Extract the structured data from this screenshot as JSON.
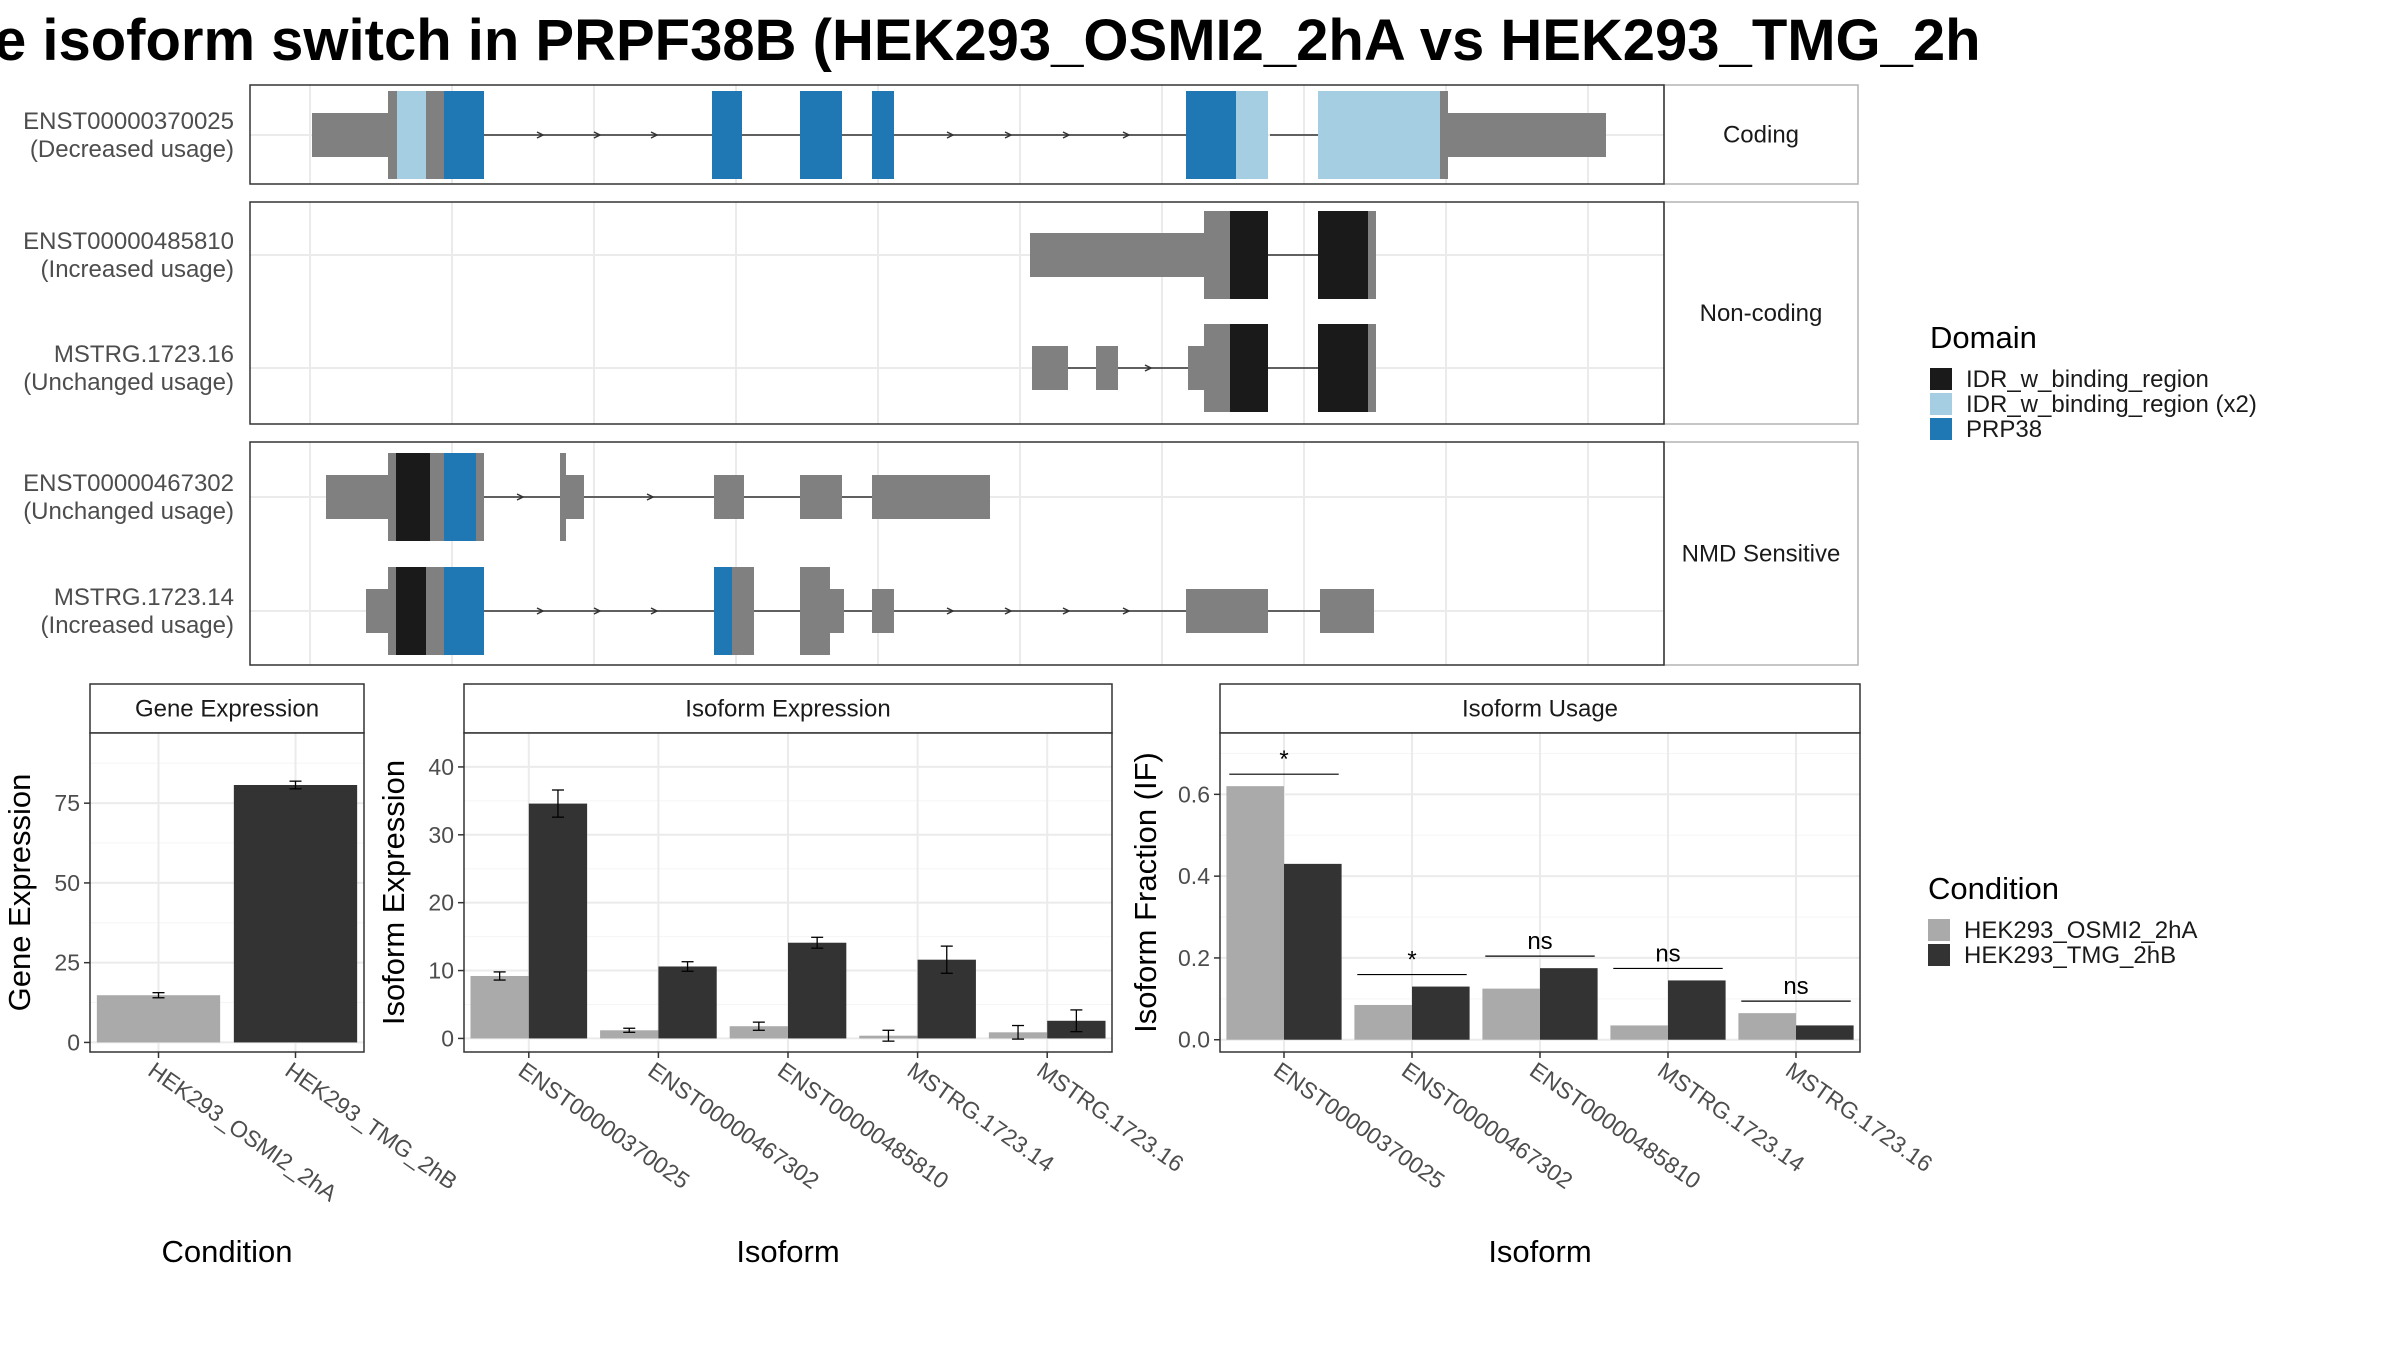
{
  "title": "e isoform switch in PRPF38B (HEK293_OSMI2_2hA vs HEK293_TMG_2h",
  "colors": {
    "intron_gray": "#808080",
    "IDR_w_binding_region": "#1a1a1a",
    "IDR_w_binding_region_x2": "#a6cee3",
    "PRP38": "#1f78b4",
    "HEK293_OSMI2_2hA": "#aaaaaa",
    "HEK293_TMG_2hB": "#333333"
  },
  "structure": {
    "panels": [
      {
        "strip": "Coding",
        "rows": [
          {
            "id": "ENST00000370025",
            "usage": "(Decreased usage)"
          }
        ]
      },
      {
        "strip": "Non-coding",
        "rows": [
          {
            "id": "ENST00000485810",
            "usage": "(Increased usage)"
          },
          {
            "id": "MSTRG.1723.16",
            "usage": "(Unchanged usage)"
          }
        ]
      },
      {
        "strip": "NMD Sensitive",
        "rows": [
          {
            "id": "ENST00000467302",
            "usage": "(Unchanged usage)"
          },
          {
            "id": "MSTRG.1723.14",
            "usage": "(Increased usage)"
          }
        ]
      }
    ]
  },
  "legend_domain": {
    "title": "Domain",
    "items": [
      {
        "label": "IDR_w_binding_region",
        "color": "#1a1a1a"
      },
      {
        "label": "IDR_w_binding_region (x2)",
        "color": "#a6cee3"
      },
      {
        "label": "PRP38",
        "color": "#1f78b4"
      }
    ]
  },
  "legend_condition": {
    "title": "Condition",
    "items": [
      {
        "label": "HEK293_OSMI2_2hA",
        "color": "#aaaaaa"
      },
      {
        "label": "HEK293_TMG_2hB",
        "color": "#333333"
      }
    ]
  },
  "chart_data": [
    {
      "type": "bar",
      "strip": "Gene Expression",
      "xlabel": "Condition",
      "ylabel": "Gene Expression",
      "categories": [
        "HEK293_OSMI2_2hA",
        "HEK293_TMG_2hB"
      ],
      "values": [
        14.8,
        80.7
      ],
      "errors": [
        0.8,
        1.2
      ],
      "ylim": [
        -3,
        97
      ],
      "yticks": [
        0,
        25,
        50,
        75
      ]
    },
    {
      "type": "bar",
      "strip": "Isoform Expression",
      "xlabel": "Isoform",
      "ylabel": "Isoform Expression",
      "categories": [
        "ENST00000370025",
        "ENST00000467302",
        "ENST00000485810",
        "MSTRG.1723.14",
        "MSTRG.1723.16"
      ],
      "series": [
        {
          "name": "HEK293_OSMI2_2hA",
          "values": [
            9.2,
            1.2,
            1.8,
            0.4,
            0.9
          ],
          "errors": [
            0.6,
            0.3,
            0.6,
            0.8,
            1.0
          ]
        },
        {
          "name": "HEK293_TMG_2hB",
          "values": [
            34.6,
            10.6,
            14.1,
            11.6,
            2.6
          ],
          "errors": [
            2.0,
            0.7,
            0.8,
            2.0,
            1.6
          ]
        }
      ],
      "ylim": [
        -2,
        45
      ],
      "yticks": [
        0,
        10,
        20,
        30,
        40
      ]
    },
    {
      "type": "bar",
      "strip": "Isoform Usage",
      "xlabel": "Isoform",
      "ylabel": "Isoform Fraction (IF)",
      "categories": [
        "ENST00000370025",
        "ENST00000467302",
        "ENST00000485810",
        "MSTRG.1723.14",
        "MSTRG.1723.16"
      ],
      "series": [
        {
          "name": "HEK293_OSMI2_2hA",
          "values": [
            0.62,
            0.085,
            0.125,
            0.035,
            0.065
          ]
        },
        {
          "name": "HEK293_TMG_2hB",
          "values": [
            0.43,
            0.13,
            0.175,
            0.145,
            0.035
          ]
        }
      ],
      "significance": [
        "*",
        "*",
        "ns",
        "ns",
        "ns"
      ],
      "ylim": [
        -0.03,
        0.75
      ],
      "yticks": [
        0.0,
        0.2,
        0.4,
        0.6
      ],
      "ytick_labels": [
        "0.0",
        "0.2",
        "0.4",
        "0.6"
      ]
    }
  ]
}
